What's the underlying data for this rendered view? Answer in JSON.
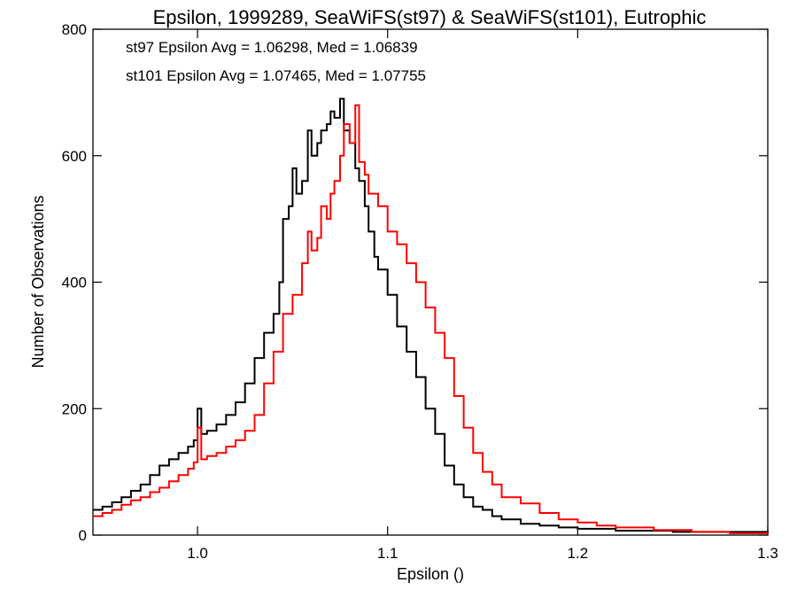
{
  "chart_data": {
    "type": "line",
    "step": true,
    "title": "Epsilon, 1999289, SeaWiFS(st97) & SeaWiFS(st101), Eutrophic",
    "xlabel": "Epsilon ()",
    "ylabel": "Number of Observations",
    "xlim": [
      0.945,
      1.3
    ],
    "ylim": [
      0,
      800
    ],
    "xticks": [
      1.0,
      1.1,
      1.2,
      1.3
    ],
    "xtick_labels": [
      "1.0",
      "1.1",
      "1.2",
      "1.3"
    ],
    "yticks": [
      0,
      200,
      400,
      600,
      800
    ],
    "ytick_labels": [
      "0",
      "200",
      "400",
      "600",
      "800"
    ],
    "legend_position": "top-left",
    "annotations": [
      {
        "text": "st97 Epsilon Avg = 1.06298, Med = 1.06839",
        "color": "#000000"
      },
      {
        "text": "st101 Epsilon Avg = 1.07465, Med = 1.07755",
        "color": "#ff0000"
      }
    ],
    "series": [
      {
        "color": "#000000",
        "x": [
          0.945,
          0.95,
          0.955,
          0.96,
          0.965,
          0.97,
          0.975,
          0.98,
          0.985,
          0.99,
          0.995,
          0.998,
          1.0,
          1.002,
          1.005,
          1.01,
          1.015,
          1.02,
          1.025,
          1.03,
          1.035,
          1.04,
          1.043,
          1.045,
          1.048,
          1.05,
          1.052,
          1.055,
          1.058,
          1.06,
          1.063,
          1.065,
          1.068,
          1.07,
          1.072,
          1.075,
          1.077,
          1.08,
          1.083,
          1.085,
          1.088,
          1.09,
          1.093,
          1.095,
          1.1,
          1.105,
          1.11,
          1.115,
          1.12,
          1.125,
          1.13,
          1.135,
          1.14,
          1.145,
          1.15,
          1.155,
          1.16,
          1.17,
          1.18,
          1.19,
          1.2,
          1.22,
          1.25,
          1.3
        ],
        "y": [
          40,
          45,
          52,
          60,
          70,
          80,
          95,
          110,
          120,
          130,
          140,
          150,
          200,
          160,
          165,
          175,
          190,
          210,
          240,
          280,
          320,
          350,
          400,
          500,
          520,
          580,
          540,
          560,
          640,
          600,
          620,
          640,
          650,
          670,
          660,
          690,
          640,
          620,
          580,
          560,
          520,
          480,
          440,
          420,
          380,
          330,
          290,
          250,
          200,
          160,
          110,
          80,
          60,
          45,
          40,
          30,
          25,
          18,
          15,
          12,
          10,
          7,
          5,
          3
        ]
      },
      {
        "color": "#ff0000",
        "x": [
          0.945,
          0.95,
          0.955,
          0.96,
          0.965,
          0.97,
          0.975,
          0.98,
          0.985,
          0.99,
          0.995,
          0.998,
          1.0,
          1.002,
          1.005,
          1.01,
          1.015,
          1.02,
          1.025,
          1.03,
          1.035,
          1.04,
          1.045,
          1.05,
          1.055,
          1.058,
          1.06,
          1.063,
          1.065,
          1.068,
          1.07,
          1.072,
          1.075,
          1.077,
          1.08,
          1.083,
          1.085,
          1.088,
          1.09,
          1.095,
          1.1,
          1.105,
          1.11,
          1.115,
          1.12,
          1.125,
          1.13,
          1.135,
          1.14,
          1.145,
          1.15,
          1.155,
          1.16,
          1.17,
          1.18,
          1.19,
          1.2,
          1.21,
          1.22,
          1.24,
          1.26,
          1.28,
          1.3
        ],
        "y": [
          30,
          35,
          40,
          48,
          55,
          60,
          68,
          75,
          85,
          95,
          105,
          115,
          170,
          120,
          125,
          130,
          140,
          150,
          165,
          190,
          240,
          290,
          350,
          380,
          430,
          480,
          450,
          470,
          520,
          500,
          540,
          560,
          600,
          650,
          620,
          680,
          590,
          570,
          540,
          520,
          480,
          460,
          430,
          400,
          360,
          320,
          280,
          220,
          170,
          130,
          100,
          80,
          60,
          50,
          35,
          25,
          20,
          15,
          12,
          8,
          5,
          3,
          2
        ]
      }
    ]
  }
}
